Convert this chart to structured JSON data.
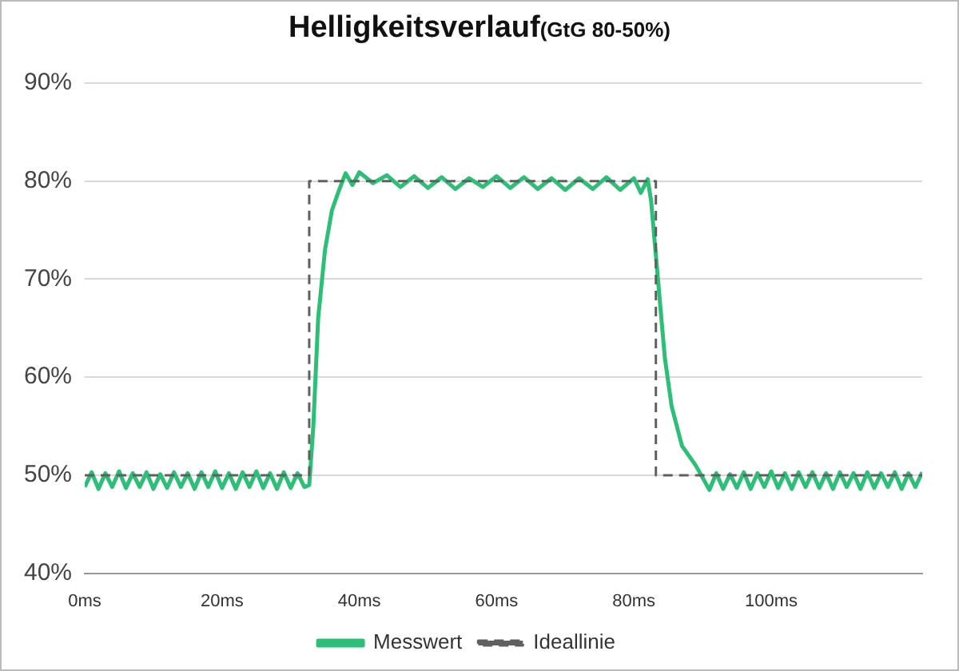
{
  "chart_data": {
    "type": "line",
    "title": "Helligkeitsverlauf",
    "subtitle": "(GtG 80-50%)",
    "xlim": [
      0,
      122
    ],
    "ylim": [
      40,
      90
    ],
    "xticks": [
      {
        "value": 0,
        "label": "0ms"
      },
      {
        "value": 20,
        "label": "20ms"
      },
      {
        "value": 40,
        "label": "40ms"
      },
      {
        "value": 60,
        "label": "60ms"
      },
      {
        "value": 80,
        "label": "80ms"
      },
      {
        "value": 100,
        "label": "100ms"
      }
    ],
    "yticks": [
      {
        "value": 40,
        "label": "40%"
      },
      {
        "value": 50,
        "label": "50%"
      },
      {
        "value": 60,
        "label": "60%"
      },
      {
        "value": 70,
        "label": "70%"
      },
      {
        "value": 80,
        "label": "80%"
      },
      {
        "value": 90,
        "label": "90%"
      }
    ],
    "grid": "y",
    "legend": "bottom",
    "marker": "none",
    "series": [
      {
        "name": "Messwert",
        "color": "#2dbe78",
        "line_style": "solid",
        "x": [
          0,
          1,
          2,
          3,
          4,
          5,
          6,
          7,
          8,
          9,
          10,
          11,
          12,
          13,
          14,
          15,
          16,
          17,
          18,
          19,
          20,
          21,
          22,
          23,
          24,
          25,
          26,
          27,
          28,
          29,
          30,
          31,
          32,
          32.7,
          33.3,
          34,
          35,
          36,
          37,
          38,
          39,
          40,
          42,
          44,
          46,
          48,
          50,
          52,
          54,
          56,
          58,
          60,
          62,
          64,
          66,
          68,
          70,
          72,
          74,
          76,
          78,
          80,
          81,
          82,
          82.5,
          83.5,
          84.5,
          85.5,
          87,
          89,
          91,
          92,
          93,
          94,
          95,
          96,
          97,
          98,
          99,
          100,
          101,
          102,
          103,
          104,
          105,
          106,
          107,
          108,
          109,
          110,
          111,
          112,
          113,
          114,
          115,
          116,
          117,
          118,
          119,
          120,
          121,
          122
        ],
        "values": [
          48.8,
          50.3,
          48.6,
          50.2,
          48.8,
          50.4,
          48.7,
          50.2,
          48.8,
          50.3,
          48.6,
          50.1,
          48.7,
          50.3,
          48.8,
          50.2,
          48.6,
          50.3,
          48.8,
          50.4,
          48.7,
          50.2,
          48.6,
          50.3,
          48.8,
          50.4,
          48.7,
          50.2,
          48.6,
          50.3,
          48.7,
          50.2,
          48.8,
          49,
          55,
          66,
          73,
          77,
          79,
          80.8,
          79.6,
          80.9,
          79.8,
          80.6,
          79.4,
          80.5,
          79.3,
          80.4,
          79.2,
          80.3,
          79.4,
          80.5,
          79.3,
          80.4,
          79.2,
          80.3,
          79.1,
          80.3,
          79.2,
          80.4,
          79.1,
          80.3,
          78.8,
          80.2,
          78,
          70,
          62,
          57,
          53,
          51,
          48.5,
          50.2,
          48.6,
          50.1,
          48.7,
          50.3,
          48.6,
          50.2,
          48.8,
          50.4,
          48.7,
          50.2,
          48.6,
          50.3,
          48.8,
          50.3,
          48.7,
          50.2,
          48.6,
          50.3,
          48.8,
          50.2,
          48.6,
          50.3,
          48.7,
          50.2,
          48.8,
          50.3,
          48.6,
          50.2,
          48.8,
          50.3
        ]
      },
      {
        "name": "Ideallinie",
        "color": "#606060",
        "line_style": "dashed",
        "x": [
          0,
          32.7,
          32.7,
          83.2,
          83.2,
          122
        ],
        "values": [
          50,
          50,
          80,
          80,
          50,
          50
        ]
      }
    ]
  }
}
